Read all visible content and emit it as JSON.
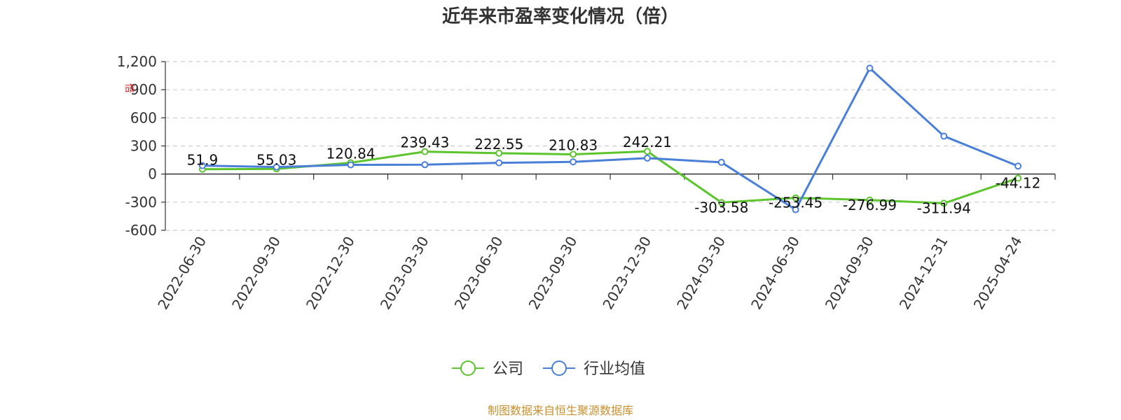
{
  "title": "近年来市盈率变化情况（倍）",
  "source": "制图数据来自恒生聚源数据库",
  "chart_data": {
    "type": "line",
    "title": "近年来市盈率变化情况（倍）",
    "ylabel": "倍",
    "xlabel": "",
    "ylim": [
      -600,
      1200
    ],
    "yticks": [
      -600,
      -300,
      0,
      300,
      600,
      900,
      1200
    ],
    "ytick_labels": [
      "-600",
      "-300",
      "0",
      "300",
      "600",
      "900",
      "1,200"
    ],
    "grid": true,
    "legend_position": "bottom",
    "categories": [
      "2022-06-30",
      "2022-09-30",
      "2022-12-30",
      "2023-03-30",
      "2023-06-30",
      "2023-09-30",
      "2023-12-30",
      "2024-03-30",
      "2024-06-30",
      "2024-09-30",
      "2024-12-31",
      "2025-04-24"
    ],
    "series": [
      {
        "name": "公司",
        "color": "#5cc42c",
        "values": [
          51.9,
          55.03,
          120.84,
          239.43,
          222.55,
          210.83,
          242.21,
          -303.58,
          -253.45,
          -276.99,
          -311.94,
          -44.12
        ],
        "labels": [
          "51.9",
          "55.03",
          "120.84",
          "239.43",
          "222.55",
          "210.83",
          "242.21",
          "-303.58",
          "-253.45",
          "-276.99",
          "-311.94",
          "-44.12"
        ]
      },
      {
        "name": "行业均值",
        "color": "#4a7fd8",
        "values": [
          90,
          75,
          98,
          100,
          120,
          130,
          170,
          125,
          -380,
          1130,
          405,
          85
        ]
      }
    ]
  }
}
